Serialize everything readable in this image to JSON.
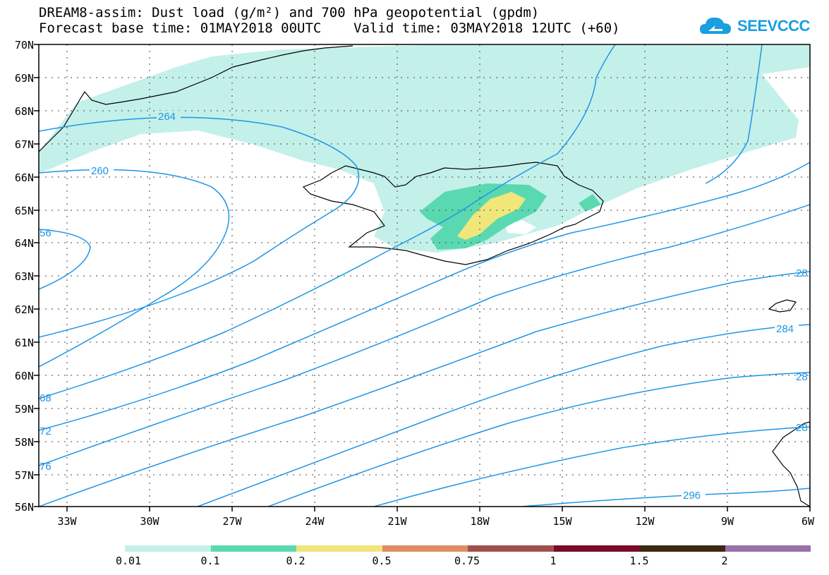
{
  "title": {
    "line1": "DREAM8-assim: Dust load (g/m²) and 700 hPa geopotential (gpdm)",
    "line2": "Forecast base time: 01MAY2018 00UTC    Valid time: 03MAY2018 12UTC (+60)"
  },
  "logo": {
    "text": "SEEVCCC",
    "icon": "cloud-logo-icon",
    "color": "#1a9fe0"
  },
  "map": {
    "lat_labels": [
      "70N",
      "69N",
      "68N",
      "67N",
      "66N",
      "65N",
      "64N",
      "63N",
      "62N",
      "61N",
      "60N",
      "59N",
      "58N",
      "57N",
      "56N"
    ],
    "lon_labels": [
      "33W",
      "30W",
      "27W",
      "24W",
      "21W",
      "18W",
      "15W",
      "12W",
      "9W",
      "6W"
    ],
    "contour_labels": [
      "264",
      "260",
      "56",
      "68",
      "72",
      "76",
      "28",
      "284",
      "28",
      "28",
      "296"
    ],
    "contour_color": "#1e96e6",
    "dust_colors": {
      "low": "#c4f0ea",
      "mid": "#5ad9b0",
      "high": "#f0e67a"
    }
  },
  "colorbar": {
    "colors": [
      "#c4f0ea",
      "#5ad9b0",
      "#f0e67a",
      "#e08c64",
      "#a0504a",
      "#7a0a2a",
      "#3c2814",
      "#9a70a8"
    ],
    "labels": [
      "0.01",
      "0.1",
      "0.2",
      "0.5",
      "0.75",
      "1",
      "1.5",
      "2"
    ]
  }
}
